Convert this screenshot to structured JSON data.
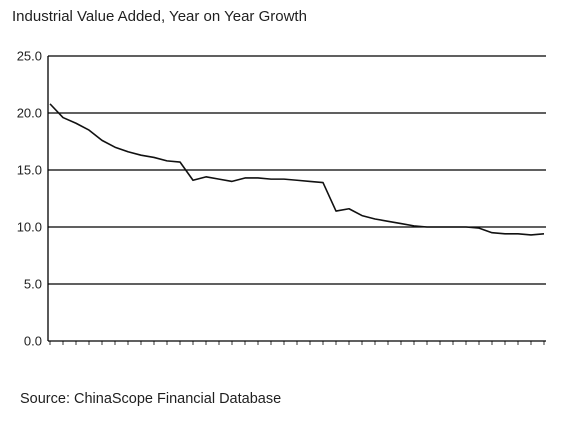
{
  "chart_data": {
    "type": "line",
    "title": "Industrial Value Added, Year on Year Growth",
    "source": "Source: ChinaScope Financial Database",
    "xlabel": "",
    "ylabel": "",
    "ylim": [
      0,
      25
    ],
    "yticks": [
      "0.0",
      "5.0",
      "10.0",
      "15.0",
      "20.0",
      "25.0"
    ],
    "grid": true,
    "legend": "none",
    "series": [
      {
        "color": "#111111",
        "values": [
          20.8,
          19.6,
          19.1,
          18.5,
          17.6,
          17.0,
          16.6,
          16.3,
          16.1,
          15.8,
          15.7,
          14.1,
          14.4,
          14.2,
          14.0,
          14.3,
          14.3,
          14.2,
          14.2,
          14.1,
          14.0,
          13.9,
          11.4,
          11.6,
          11.0,
          10.7,
          10.5,
          10.3,
          10.1,
          10.0,
          10.0,
          10.0,
          10.0,
          9.9,
          9.5,
          9.4,
          9.4,
          9.3,
          9.4
        ]
      }
    ],
    "x_tick_count": 39
  }
}
